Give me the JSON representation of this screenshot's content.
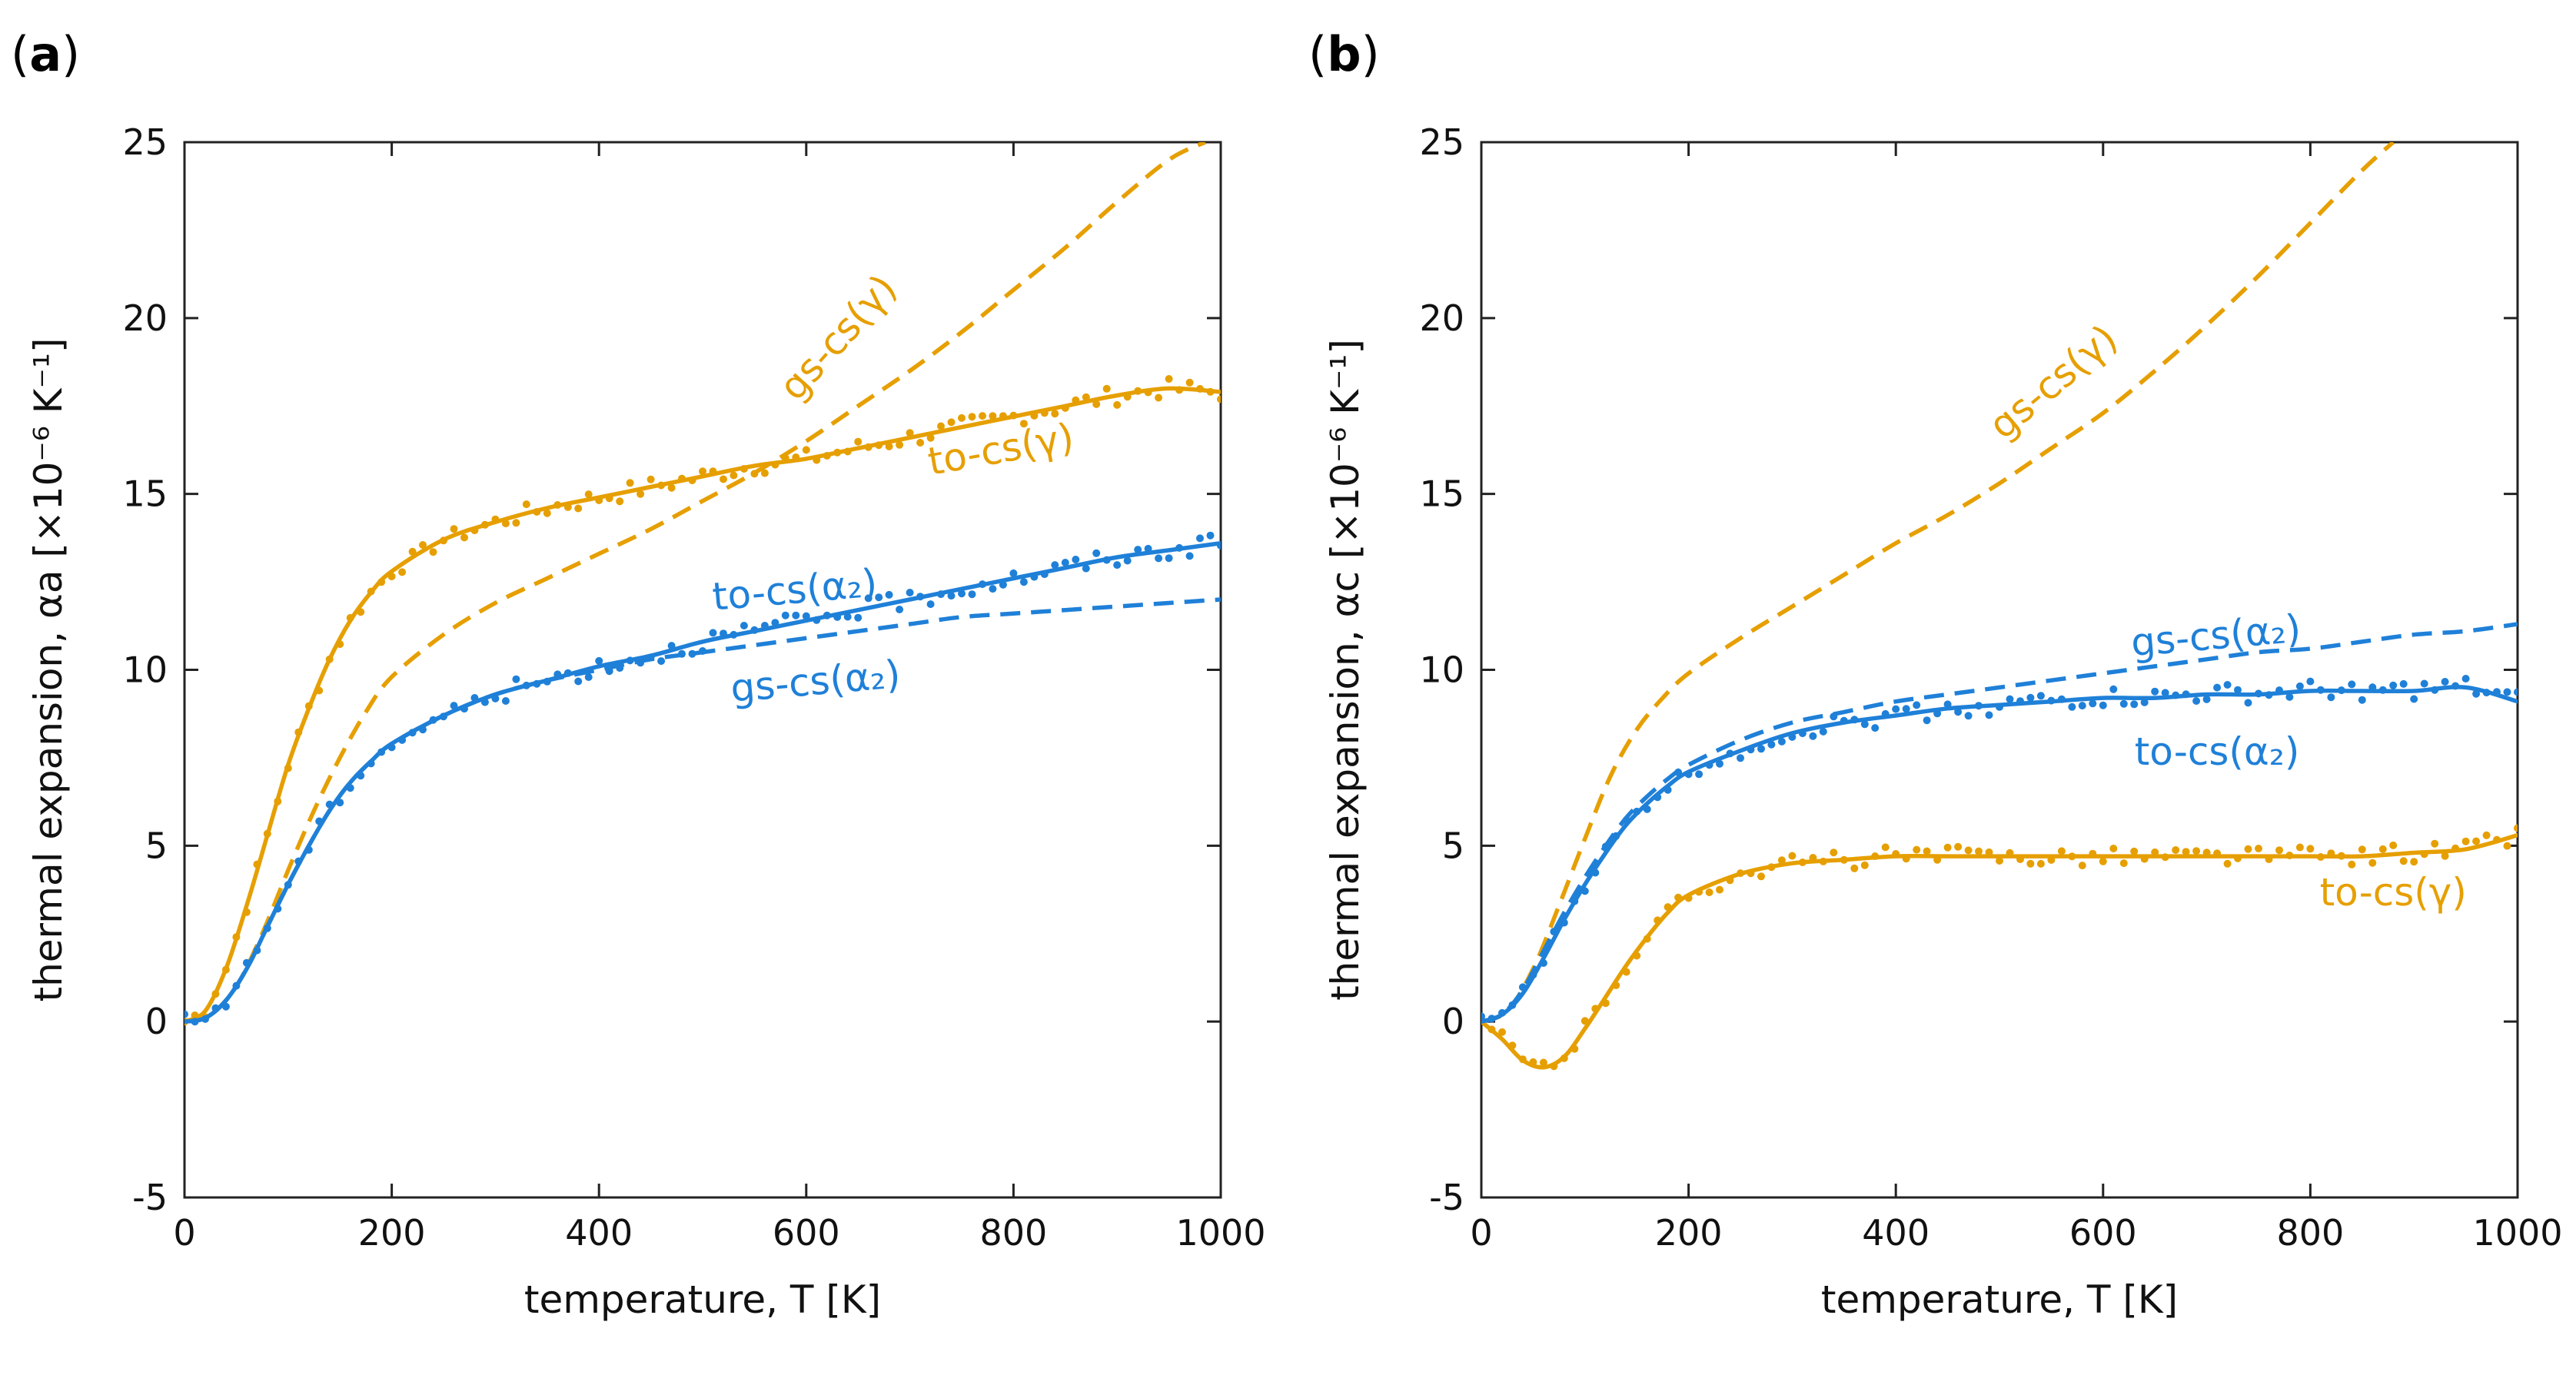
{
  "colors": {
    "orange": "#e69f00",
    "blue": "#1f80d8",
    "axis": "#222222"
  },
  "chart_data": [
    {
      "type": "line",
      "panel": "a",
      "panel_label": "a",
      "xlabel": "temperature, T [K]",
      "ylabel": "thermal expansion, αa [×10⁻⁶ K⁻¹]",
      "xlim": [
        0,
        1000
      ],
      "ylim": [
        -5,
        25
      ],
      "xticks": [
        0,
        200,
        400,
        600,
        800,
        1000
      ],
      "yticks": [
        -5,
        0,
        5,
        10,
        15,
        20,
        25
      ],
      "xtick_labels": [
        "0",
        "200",
        "400",
        "600",
        "800",
        "1000"
      ],
      "ytick_labels": [
        "-5",
        "0",
        "5",
        "10",
        "15",
        "20",
        "25"
      ],
      "series": [
        {
          "name": "to-cs(γ)",
          "color": "orange",
          "style": "solid",
          "scatter": true,
          "x": [
            0,
            20,
            40,
            60,
            80,
            100,
            120,
            140,
            160,
            180,
            200,
            250,
            300,
            350,
            400,
            450,
            500,
            550,
            600,
            650,
            700,
            750,
            800,
            850,
            900,
            950,
            1000
          ],
          "y": [
            0,
            0.3,
            1.5,
            3.3,
            5.3,
            7.3,
            8.9,
            10.3,
            11.4,
            12.2,
            12.8,
            13.7,
            14.2,
            14.6,
            14.9,
            15.2,
            15.5,
            15.8,
            16.0,
            16.3,
            16.6,
            16.9,
            17.2,
            17.5,
            17.8,
            18.0,
            17.9
          ]
        },
        {
          "name": "gs-cs(γ)",
          "color": "orange",
          "style": "dashed",
          "scatter": false,
          "x": [
            0,
            25,
            50,
            75,
            100,
            125,
            150,
            175,
            200,
            250,
            300,
            350,
            400,
            450,
            500,
            550,
            600,
            650,
            700,
            750,
            800,
            850,
            900,
            950,
            985
          ],
          "y": [
            0,
            0.2,
            1.0,
            2.5,
            4.3,
            6.0,
            7.5,
            8.8,
            9.8,
            11.0,
            11.9,
            12.6,
            13.3,
            14.0,
            14.8,
            15.6,
            16.5,
            17.5,
            18.5,
            19.6,
            20.8,
            22.0,
            23.3,
            24.5,
            25.0
          ]
        },
        {
          "name": "to-cs(α₂)",
          "color": "blue",
          "style": "solid",
          "scatter": true,
          "x": [
            0,
            20,
            40,
            60,
            80,
            100,
            120,
            140,
            160,
            180,
            200,
            250,
            300,
            350,
            400,
            450,
            500,
            550,
            600,
            650,
            700,
            750,
            800,
            850,
            900,
            950,
            1000
          ],
          "y": [
            0,
            0.1,
            0.6,
            1.5,
            2.7,
            3.9,
            5.0,
            6.0,
            6.8,
            7.4,
            7.9,
            8.7,
            9.3,
            9.7,
            10.1,
            10.4,
            10.8,
            11.1,
            11.4,
            11.7,
            12.0,
            12.3,
            12.6,
            12.9,
            13.2,
            13.4,
            13.6
          ]
        },
        {
          "name": "gs-cs(α₂)",
          "color": "blue",
          "style": "dashed",
          "scatter": false,
          "x": [
            0,
            20,
            40,
            60,
            80,
            100,
            120,
            140,
            160,
            180,
            200,
            250,
            300,
            350,
            400,
            450,
            500,
            550,
            600,
            650,
            700,
            750,
            800,
            850,
            900,
            950,
            1000
          ],
          "y": [
            0,
            0.1,
            0.6,
            1.5,
            2.7,
            3.9,
            5.0,
            6.0,
            6.8,
            7.4,
            7.9,
            8.7,
            9.3,
            9.7,
            10.0,
            10.3,
            10.5,
            10.7,
            10.9,
            11.1,
            11.3,
            11.5,
            11.6,
            11.7,
            11.8,
            11.9,
            12.0
          ]
        }
      ],
      "annotations": [
        {
          "text": "gs-cs(γ)",
          "color": "orange",
          "x": 640,
          "y": 19.2,
          "rotate": -48
        },
        {
          "text": "to-cs(γ)",
          "color": "orange",
          "x": 790,
          "y": 15.9,
          "rotate": -10
        },
        {
          "text": "to-cs(α₂)",
          "color": "blue",
          "x": 590,
          "y": 11.9,
          "rotate": -5
        },
        {
          "text": "gs-cs(α₂)",
          "color": "blue",
          "x": 610,
          "y": 9.3,
          "rotate": -5
        }
      ]
    },
    {
      "type": "line",
      "panel": "b",
      "panel_label": "b",
      "xlabel": "temperature, T [K]",
      "ylabel": "thermal expansion, αc [×10⁻⁶ K⁻¹]",
      "xlim": [
        0,
        1000
      ],
      "ylim": [
        -5,
        25
      ],
      "xticks": [
        0,
        200,
        400,
        600,
        800,
        1000
      ],
      "yticks": [
        -5,
        0,
        5,
        10,
        15,
        20,
        25
      ],
      "xtick_labels": [
        "0",
        "200",
        "400",
        "600",
        "800",
        "1000"
      ],
      "ytick_labels": [
        "-5",
        "0",
        "5",
        "10",
        "15",
        "20",
        "25"
      ],
      "series": [
        {
          "name": "gs-cs(γ)",
          "color": "orange",
          "style": "dashed",
          "scatter": false,
          "x": [
            0,
            25,
            50,
            75,
            100,
            125,
            150,
            175,
            200,
            250,
            300,
            350,
            400,
            450,
            500,
            550,
            600,
            650,
            700,
            750,
            800,
            850,
            880
          ],
          "y": [
            0,
            0.3,
            1.5,
            3.3,
            5.2,
            7.0,
            8.3,
            9.2,
            9.9,
            10.9,
            11.8,
            12.7,
            13.6,
            14.4,
            15.3,
            16.3,
            17.3,
            18.5,
            19.8,
            21.2,
            22.7,
            24.2,
            25.0
          ]
        },
        {
          "name": "to-cs(γ)",
          "color": "orange",
          "style": "solid",
          "scatter": true,
          "x": [
            0,
            20,
            40,
            60,
            80,
            100,
            120,
            140,
            160,
            180,
            200,
            250,
            300,
            350,
            400,
            450,
            500,
            550,
            600,
            650,
            700,
            750,
            800,
            850,
            900,
            950,
            1000
          ],
          "y": [
            0,
            -0.5,
            -1.1,
            -1.3,
            -1.0,
            -0.2,
            0.7,
            1.6,
            2.4,
            3.1,
            3.6,
            4.2,
            4.5,
            4.6,
            4.7,
            4.7,
            4.7,
            4.7,
            4.7,
            4.7,
            4.7,
            4.7,
            4.7,
            4.7,
            4.8,
            4.9,
            5.3
          ]
        },
        {
          "name": "to-cs(α₂)",
          "color": "blue",
          "style": "solid",
          "scatter": true,
          "x": [
            0,
            20,
            40,
            60,
            80,
            100,
            120,
            140,
            160,
            180,
            200,
            250,
            300,
            350,
            400,
            450,
            500,
            550,
            600,
            650,
            700,
            750,
            800,
            850,
            900,
            950,
            1000
          ],
          "y": [
            0,
            0.2,
            0.8,
            1.8,
            2.9,
            3.9,
            4.8,
            5.6,
            6.2,
            6.7,
            7.1,
            7.7,
            8.2,
            8.5,
            8.7,
            8.9,
            9.0,
            9.1,
            9.2,
            9.2,
            9.3,
            9.3,
            9.4,
            9.4,
            9.4,
            9.5,
            9.1
          ]
        },
        {
          "name": "gs-cs(α₂)",
          "color": "blue",
          "style": "dashed",
          "scatter": false,
          "x": [
            0,
            20,
            40,
            60,
            80,
            100,
            120,
            140,
            160,
            180,
            200,
            250,
            300,
            350,
            400,
            450,
            500,
            550,
            600,
            650,
            700,
            750,
            800,
            850,
            900,
            950,
            1000
          ],
          "y": [
            0,
            0.2,
            0.9,
            2.0,
            3.1,
            4.1,
            5.0,
            5.8,
            6.4,
            6.9,
            7.3,
            8.0,
            8.5,
            8.8,
            9.1,
            9.3,
            9.5,
            9.7,
            9.9,
            10.1,
            10.3,
            10.5,
            10.6,
            10.8,
            11.0,
            11.1,
            11.3
          ]
        }
      ],
      "annotations": [
        {
          "text": "gs-cs(γ)",
          "color": "orange",
          "x": 560,
          "y": 17.9,
          "rotate": -40
        },
        {
          "text": "gs-cs(α₂)",
          "color": "blue",
          "x": 710,
          "y": 10.6,
          "rotate": -5
        },
        {
          "text": "to-cs(α₂)",
          "color": "blue",
          "x": 710,
          "y": 7.3,
          "rotate": 0
        },
        {
          "text": "to-cs(γ)",
          "color": "orange",
          "x": 880,
          "y": 3.3,
          "rotate": 0
        }
      ]
    }
  ]
}
